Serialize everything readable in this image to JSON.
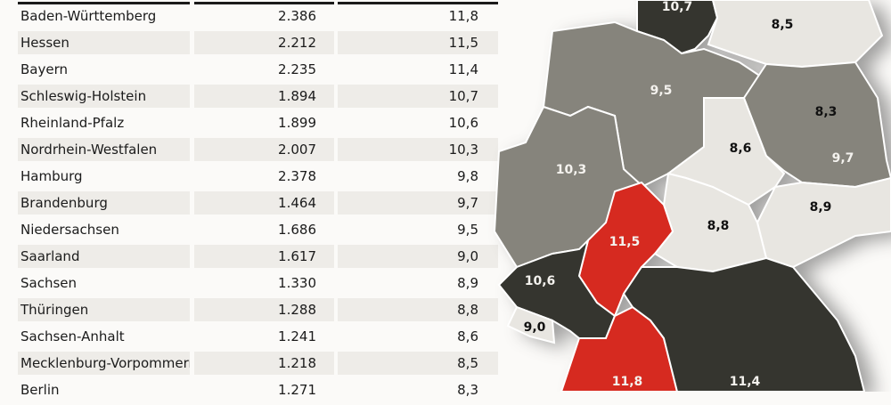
{
  "chart_data": {
    "type": "table",
    "rows": [
      {
        "state": "Baden-Württemberg",
        "value1": "2.386",
        "value2": "11,8"
      },
      {
        "state": "Hessen",
        "value1": "2.212",
        "value2": "11,5"
      },
      {
        "state": "Bayern",
        "value1": "2.235",
        "value2": "11,4"
      },
      {
        "state": "Schleswig-Holstein",
        "value1": "1.894",
        "value2": "10,7"
      },
      {
        "state": "Rheinland-Pfalz",
        "value1": "1.899",
        "value2": "10,6"
      },
      {
        "state": "Nordrhein-Westfalen",
        "value1": "2.007",
        "value2": "10,3"
      },
      {
        "state": "Hamburg",
        "value1": "2.378",
        "value2": "9,8"
      },
      {
        "state": "Brandenburg",
        "value1": "1.464",
        "value2": "9,7"
      },
      {
        "state": "Niedersachsen",
        "value1": "1.686",
        "value2": "9,5"
      },
      {
        "state": "Saarland",
        "value1": "1.617",
        "value2": "9,0"
      },
      {
        "state": "Sachsen",
        "value1": "1.330",
        "value2": "8,9"
      },
      {
        "state": "Thüringen",
        "value1": "1.288",
        "value2": "8,8"
      },
      {
        "state": "Sachsen-Anhalt",
        "value1": "1.241",
        "value2": "8,6"
      },
      {
        "state": "Mecklenburg-Vorpommern",
        "value1": "1.218",
        "value2": "8,5"
      },
      {
        "state": "Berlin",
        "value1": "1.271",
        "value2": "8,3"
      }
    ],
    "map": [
      {
        "state": "Schleswig-Holstein",
        "label": "10,7",
        "shade": "dark"
      },
      {
        "state": "Mecklenburg-Vorpommern",
        "label": "8,5",
        "shade": "light"
      },
      {
        "state": "Niedersachsen",
        "label": "9,5",
        "shade": "mid"
      },
      {
        "state": "Berlin",
        "label": "8,3",
        "shade": "light"
      },
      {
        "state": "Sachsen-Anhalt",
        "label": "8,6",
        "shade": "light"
      },
      {
        "state": "Brandenburg",
        "label": "9,7",
        "shade": "mid"
      },
      {
        "state": "Nordrhein-Westfalen",
        "label": "10,3",
        "shade": "mid"
      },
      {
        "state": "Sachsen",
        "label": "8,9",
        "shade": "light"
      },
      {
        "state": "Thüringen",
        "label": "8,8",
        "shade": "light"
      },
      {
        "state": "Hessen",
        "label": "11,5",
        "shade": "red"
      },
      {
        "state": "Rheinland-Pfalz",
        "label": "10,6",
        "shade": "dark"
      },
      {
        "state": "Saarland",
        "label": "9,0",
        "shade": "light"
      },
      {
        "state": "Baden-Württemberg",
        "label": "11,8",
        "shade": "red"
      },
      {
        "state": "Bayern",
        "label": "11,4",
        "shade": "dark"
      }
    ],
    "colors": {
      "dark": "#35352f",
      "mid": "#86847c",
      "light": "#e8e6e1",
      "red": "#d62a20"
    }
  }
}
